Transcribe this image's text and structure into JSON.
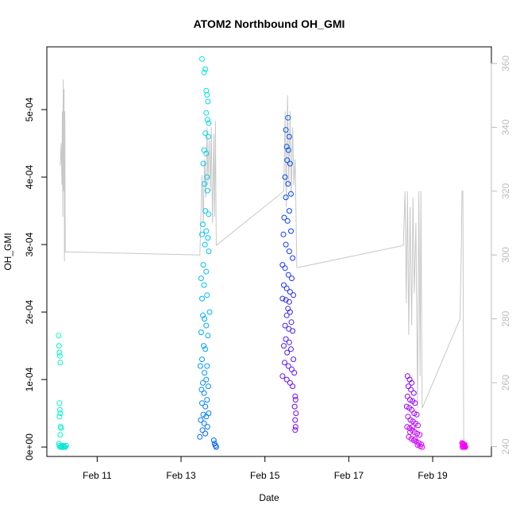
{
  "chart_data": {
    "type": "scatter",
    "title": "ATOM2 Northbound OH_GMI",
    "xlabel": "Date",
    "ylabel": "OH_GMI",
    "x_ticks": [
      "Feb 11",
      "Feb 13",
      "Feb 15",
      "Feb 17",
      "Feb 19"
    ],
    "x_tick_days": [
      11,
      13,
      15,
      17,
      19
    ],
    "xlim": [
      9.8,
      20.4
    ],
    "y_ticks": [
      "0e+00",
      "1e-04",
      "2e-04",
      "3e-04",
      "4e-04",
      "5e-04"
    ],
    "y_tick_values": [
      0,
      0.0001,
      0.0002,
      0.0003,
      0.0004,
      0.0005
    ],
    "ylim": [
      -1.4e-05,
      0.000593
    ],
    "y2_ticks": [
      "240",
      "260",
      "280",
      "300",
      "320",
      "340",
      "360"
    ],
    "y2_tick_values": [
      240,
      260,
      280,
      300,
      320,
      340,
      360
    ],
    "y2lim": [
      236.9,
      365.2
    ],
    "grid": false,
    "secondary_line_color": "#c8c8c8",
    "color_gradient": [
      "#00ffbf",
      "#00bfff",
      "#0040ff",
      "#8000ff",
      "#ff00ff"
    ],
    "series": [
      {
        "points": [
          [
            10.08,
            0.000165
          ],
          [
            10.09,
            0.00015
          ],
          [
            10.1,
            0.00014
          ],
          [
            10.11,
            0.000135
          ],
          [
            10.12,
            0.000125
          ],
          [
            10.1,
            6.5e-05
          ],
          [
            10.11,
            5.5e-05
          ],
          [
            10.12,
            5e-05
          ],
          [
            10.1,
            4.5e-05
          ],
          [
            10.13,
            3e-05
          ],
          [
            10.14,
            2.8e-05
          ],
          [
            10.12,
            1.8e-05
          ],
          [
            10.09,
            5e-06
          ],
          [
            10.1,
            2e-06
          ],
          [
            10.12,
            0.0
          ],
          [
            10.14,
            1e-06
          ],
          [
            10.16,
            0.0
          ],
          [
            10.18,
            2e-06
          ],
          [
            10.2,
            0.0
          ],
          [
            10.22,
            1e-06
          ],
          [
            10.24,
            0.0
          ],
          [
            10.26,
            2e-06
          ],
          [
            13.5,
            0.000575
          ],
          [
            13.55,
            0.000555
          ],
          [
            13.58,
            0.00056
          ],
          [
            13.6,
            0.000528
          ],
          [
            13.62,
            0.000522
          ],
          [
            13.64,
            0.000512
          ],
          [
            13.6,
            0.000495
          ],
          [
            13.63,
            0.000485
          ],
          [
            13.66,
            0.00048
          ],
          [
            13.58,
            0.000465
          ],
          [
            13.65,
            0.00046
          ],
          [
            13.55,
            0.00044
          ],
          [
            13.6,
            0.000435
          ],
          [
            13.53,
            0.00042
          ],
          [
            13.62,
            0.0004
          ],
          [
            13.56,
            0.00039
          ],
          [
            13.63,
            0.00038
          ],
          [
            13.58,
            0.00035
          ],
          [
            13.66,
            0.000345
          ],
          [
            13.52,
            0.00033
          ],
          [
            13.6,
            0.00032
          ],
          [
            13.64,
            0.00031
          ],
          [
            13.5,
            0.000315
          ],
          [
            13.57,
            0.0003
          ],
          [
            13.66,
            0.00029
          ],
          [
            13.53,
            0.00027
          ],
          [
            13.6,
            0.00026
          ],
          [
            13.48,
            0.00025
          ],
          [
            13.55,
            0.00024
          ],
          [
            13.62,
            0.000225
          ],
          [
            13.5,
            0.00022
          ],
          [
            13.68,
            0.0002
          ],
          [
            13.52,
            0.000195
          ],
          [
            13.56,
            0.00019
          ],
          [
            13.6,
            0.00018
          ],
          [
            13.48,
            0.00017
          ],
          [
            13.64,
            0.000165
          ],
          [
            13.54,
            0.00015
          ],
          [
            13.58,
            0.000145
          ],
          [
            13.5,
            0.00013
          ],
          [
            13.62,
            0.00012
          ],
          [
            13.46,
            0.00012
          ],
          [
            13.56,
            0.00011
          ],
          [
            13.6,
            0.0001
          ],
          [
            13.52,
            9.5e-05
          ],
          [
            13.65,
            9e-05
          ],
          [
            13.49,
            8.5e-05
          ],
          [
            13.55,
            8e-05
          ],
          [
            13.62,
            7e-05
          ],
          [
            13.5,
            6.5e-05
          ],
          [
            13.58,
            6e-05
          ],
          [
            13.66,
            5e-05
          ],
          [
            13.53,
            4.8e-05
          ],
          [
            13.6,
            4.5e-05
          ],
          [
            13.47,
            4e-05
          ],
          [
            13.55,
            3.5e-05
          ],
          [
            13.63,
            3e-05
          ],
          [
            13.51,
            2.5e-05
          ],
          [
            13.58,
            2e-05
          ],
          [
            13.45,
            1.5e-05
          ],
          [
            13.78,
            1e-05
          ],
          [
            13.8,
            5e-06
          ],
          [
            13.82,
            2e-06
          ],
          [
            13.84,
            0.0
          ],
          [
            15.55,
            0.000488
          ],
          [
            15.5,
            0.00047
          ],
          [
            15.58,
            0.00046
          ],
          [
            15.52,
            0.000445
          ],
          [
            15.56,
            0.00044
          ],
          [
            15.53,
            0.000425
          ],
          [
            15.6,
            0.00042
          ],
          [
            15.48,
            0.0004
          ],
          [
            15.55,
            0.00039
          ],
          [
            15.62,
            0.000375
          ],
          [
            15.5,
            0.00037
          ],
          [
            15.58,
            0.00035
          ],
          [
            15.46,
            0.00034
          ],
          [
            15.54,
            0.000335
          ],
          [
            15.62,
            0.00032
          ],
          [
            15.44,
            0.000315
          ],
          [
            15.5,
            0.0003
          ],
          [
            15.58,
            0.00029
          ],
          [
            15.66,
            0.00028
          ],
          [
            15.42,
            0.00027
          ],
          [
            15.48,
            0.000265
          ],
          [
            15.56,
            0.000255
          ],
          [
            15.64,
            0.00025
          ],
          [
            15.45,
            0.00024
          ],
          [
            15.52,
            0.000235
          ],
          [
            15.6,
            0.00023
          ],
          [
            15.68,
            0.000225
          ],
          [
            15.42,
            0.00022
          ],
          [
            15.5,
            0.000218
          ],
          [
            15.58,
            0.000215
          ],
          [
            15.55,
            0.000205
          ],
          [
            15.6,
            0.0002
          ],
          [
            15.52,
            0.000195
          ],
          [
            15.63,
            0.000185
          ],
          [
            15.48,
            0.00018
          ],
          [
            15.57,
            0.000175
          ],
          [
            15.66,
            0.000172
          ],
          [
            15.5,
            0.00016
          ],
          [
            15.58,
            0.000155
          ],
          [
            15.45,
            0.00015
          ],
          [
            15.62,
            0.000145
          ],
          [
            15.53,
            0.00014
          ],
          [
            15.68,
            0.00013
          ],
          [
            15.47,
            0.000125
          ],
          [
            15.56,
            0.00012
          ],
          [
            15.64,
            0.000115
          ],
          [
            15.7,
            0.00011
          ],
          [
            15.42,
            0.000105
          ],
          [
            15.52,
            0.0001
          ],
          [
            15.6,
            9.5e-05
          ],
          [
            15.66,
            9e-05
          ],
          [
            15.72,
            7.5e-05
          ],
          [
            15.73,
            7e-05
          ],
          [
            15.71,
            6e-05
          ],
          [
            15.74,
            5e-05
          ],
          [
            15.72,
            4e-05
          ],
          [
            15.73,
            3e-05
          ],
          [
            15.72,
            2.5e-05
          ],
          [
            18.4,
            0.000105
          ],
          [
            18.45,
            0.0001
          ],
          [
            18.5,
            9.5e-05
          ],
          [
            18.42,
            9e-05
          ],
          [
            18.48,
            8.5e-05
          ],
          [
            18.55,
            8e-05
          ],
          [
            18.4,
            7.5e-05
          ],
          [
            18.46,
            7e-05
          ],
          [
            18.52,
            6.8e-05
          ],
          [
            18.58,
            6.5e-05
          ],
          [
            18.38,
            6e-05
          ],
          [
            18.44,
            5.8e-05
          ],
          [
            18.5,
            5.5e-05
          ],
          [
            18.56,
            5e-05
          ],
          [
            18.62,
            4.8e-05
          ],
          [
            18.41,
            4.5e-05
          ],
          [
            18.47,
            4e-05
          ],
          [
            18.53,
            3.8e-05
          ],
          [
            18.59,
            3.5e-05
          ],
          [
            18.65,
            3.2e-05
          ],
          [
            18.39,
            3e-05
          ],
          [
            18.45,
            2.8e-05
          ],
          [
            18.51,
            2.5e-05
          ],
          [
            18.57,
            2.2e-05
          ],
          [
            18.63,
            2e-05
          ],
          [
            18.69,
            1.8e-05
          ],
          [
            18.43,
            1.5e-05
          ],
          [
            18.49,
            1.2e-05
          ],
          [
            18.55,
            1e-05
          ],
          [
            18.61,
            8e-06
          ],
          [
            18.67,
            6e-06
          ],
          [
            18.73,
            4e-06
          ],
          [
            18.46,
            2.2e-05
          ],
          [
            18.52,
            3e-05
          ],
          [
            18.58,
            1.2e-05
          ],
          [
            18.64,
            3e-06
          ],
          [
            18.7,
            1e-06
          ],
          [
            18.75,
            0.0
          ],
          [
            19.7,
            6e-06
          ],
          [
            19.72,
            4e-06
          ],
          [
            19.74,
            3e-06
          ],
          [
            19.76,
            2e-06
          ],
          [
            19.71,
            0.0
          ],
          [
            19.73,
            1e-06
          ],
          [
            19.75,
            0.0
          ],
          [
            19.77,
            1e-06
          ],
          [
            19.78,
            0.0
          ],
          [
            19.72,
            5e-06
          ],
          [
            19.74,
            0.0
          ],
          [
            19.76,
            4e-06
          ]
        ]
      },
      {
        "axis": "right",
        "points": [
          [
            10.12,
            328
          ],
          [
            10.14,
            335
          ],
          [
            10.16,
            322
          ],
          [
            10.17,
            345
          ],
          [
            10.18,
            312
          ],
          [
            10.19,
            355
          ],
          [
            10.2,
            320
          ],
          [
            10.21,
            352
          ],
          [
            10.22,
            298
          ],
          [
            10.23,
            345
          ],
          [
            10.24,
            301
          ],
          [
            13.45,
            300
          ],
          [
            13.5,
            325
          ],
          [
            13.53,
            310
          ],
          [
            13.56,
            330
          ],
          [
            13.59,
            318
          ],
          [
            13.62,
            340
          ],
          [
            13.64,
            322
          ],
          [
            13.67,
            336
          ],
          [
            13.7,
            320
          ],
          [
            13.72,
            340
          ],
          [
            13.75,
            310
          ],
          [
            13.78,
            338
          ],
          [
            13.8,
            312
          ],
          [
            13.82,
            342
          ],
          [
            13.84,
            303
          ],
          [
            15.45,
            320
          ],
          [
            15.48,
            345
          ],
          [
            15.51,
            315
          ],
          [
            15.54,
            350
          ],
          [
            15.57,
            322
          ],
          [
            15.6,
            345
          ],
          [
            15.63,
            318
          ],
          [
            15.66,
            340
          ],
          [
            15.69,
            322
          ],
          [
            15.72,
            330
          ],
          [
            15.76,
            296
          ],
          [
            18.3,
            303
          ],
          [
            18.34,
            320
          ],
          [
            18.37,
            285
          ],
          [
            18.4,
            320
          ],
          [
            18.43,
            275
          ],
          [
            18.46,
            315
          ],
          [
            18.5,
            278
          ],
          [
            18.53,
            318
          ],
          [
            18.56,
            288
          ],
          [
            18.6,
            310
          ],
          [
            18.64,
            252
          ],
          [
            18.67,
            320
          ],
          [
            18.7,
            262
          ],
          [
            18.72,
            320
          ],
          [
            18.75,
            252
          ],
          [
            19.65,
            280
          ],
          [
            19.68,
            300
          ],
          [
            19.7,
            320
          ],
          [
            19.72,
            320
          ],
          [
            19.74,
            242
          ]
        ]
      }
    ]
  }
}
